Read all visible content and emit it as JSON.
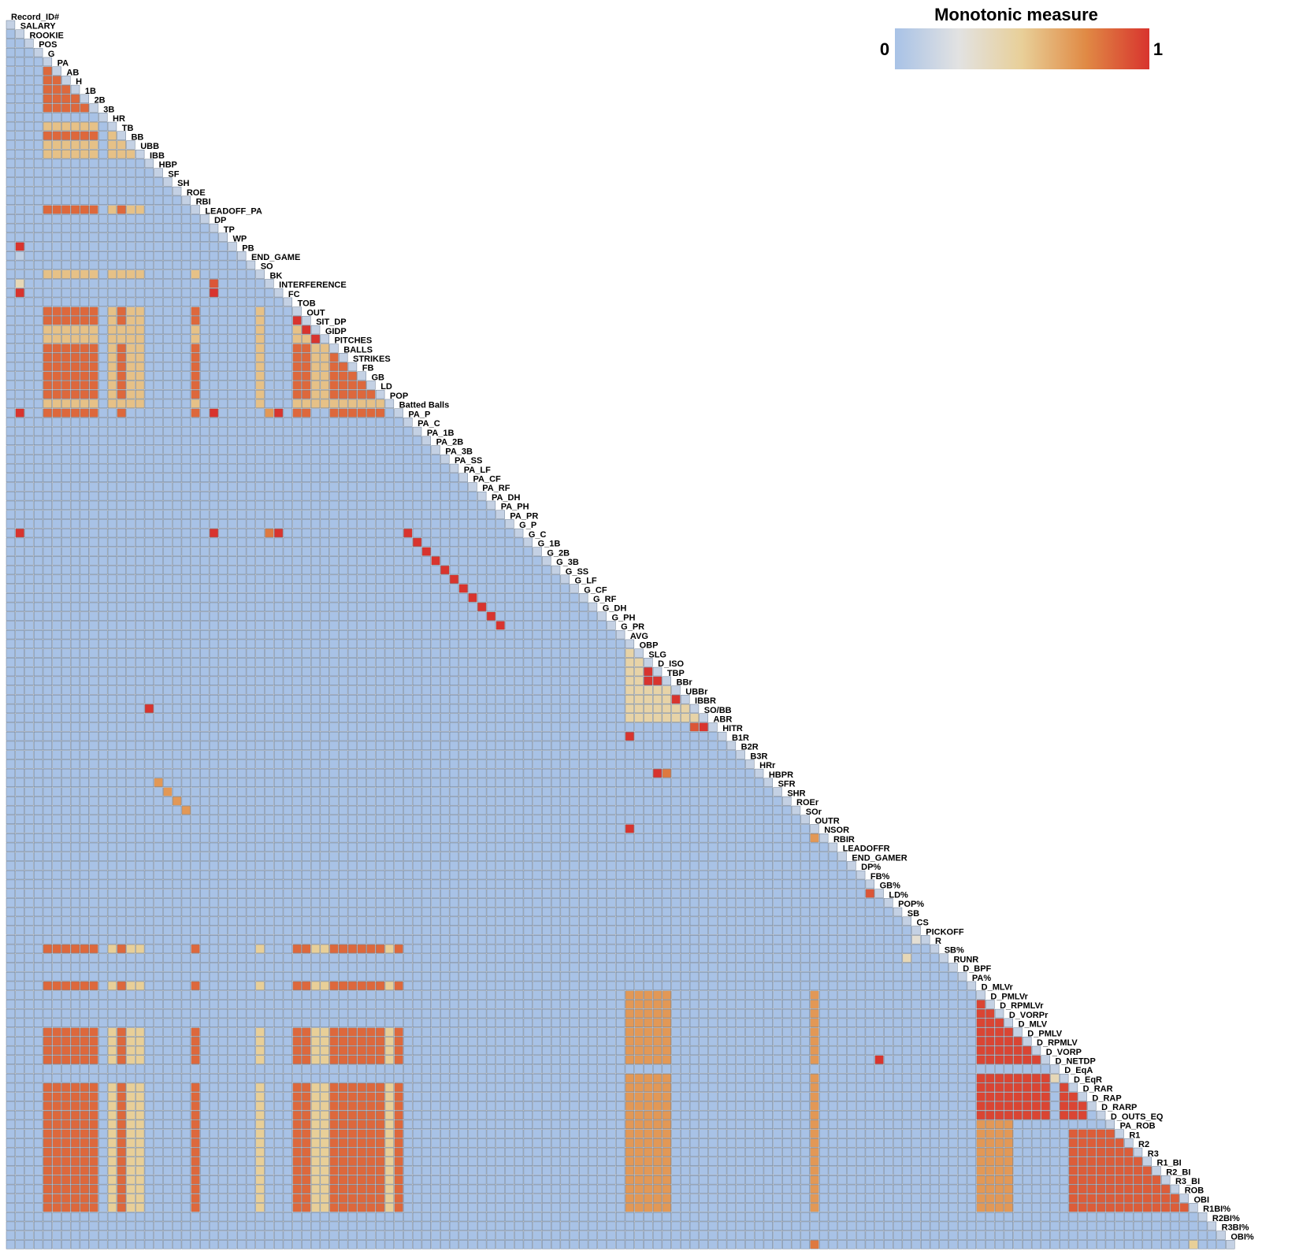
{
  "chart_data": {
    "type": "heatmap",
    "title": "",
    "legend": {
      "title": "Monotonic measure",
      "min_label": "0",
      "max_label": "1",
      "placement": "top-right",
      "colors": [
        "#a8c2e6",
        "#e2e2e2",
        "#e8cf98",
        "#e08a45",
        "#d8342e"
      ]
    },
    "layout": "lower-triangle",
    "cell_content": "miniature scatterplot of each variable pair",
    "variables": [
      "Record_ID#",
      "SALARY",
      "ROOKIE",
      "POS",
      "G",
      "PA",
      "AB",
      "H",
      "1B",
      "2B",
      "3B",
      "HR",
      "TB",
      "BB",
      "UBB",
      "IBB",
      "HBP",
      "SF",
      "SH",
      "ROE",
      "RBI",
      "LEADOFF_PA",
      "DP",
      "TP",
      "WP",
      "PB",
      "END_GAME",
      "SO",
      "BK",
      "INTERFERENCE",
      "FC",
      "TOB",
      "OUT",
      "SIT_DP",
      "GIDP",
      "PITCHES",
      "BALLS",
      "STRIKES",
      "FB",
      "GB",
      "LD",
      "POP",
      "Batted Balls",
      "PA_P",
      "PA_C",
      "PA_1B",
      "PA_2B",
      "PA_3B",
      "PA_SS",
      "PA_LF",
      "PA_CF",
      "PA_RF",
      "PA_DH",
      "PA_PH",
      "PA_PR",
      "G_P",
      "G_C",
      "G_1B",
      "G_2B",
      "G_3B",
      "G_SS",
      "G_LF",
      "G_CF",
      "G_RF",
      "G_DH",
      "G_PH",
      "G_PR",
      "AVG",
      "OBP",
      "SLG",
      "D_ISO",
      "TBP",
      "BBr",
      "UBBr",
      "IBBR",
      "SO/BB",
      "ABR",
      "HITR",
      "B1R",
      "B2R",
      "B3R",
      "HRr",
      "HBPR",
      "SFR",
      "SHR",
      "ROEr",
      "SOr",
      "OUTR",
      "NSOR",
      "RBIR",
      "LEADOFFR",
      "END_GAMER",
      "DP%",
      "FB%",
      "GB%",
      "LD%",
      "POP%",
      "SB",
      "CS",
      "PICKOFF",
      "R",
      "SB%",
      "RUNR",
      "D_BPF",
      "PA%",
      "D_MLVr",
      "D_PMLVr",
      "D_RPMLVr",
      "D_VORPr",
      "D_MLV",
      "D_PMLV",
      "D_RPMLV",
      "D_VORP",
      "D_NETDP",
      "D_EqA",
      "D_EqR",
      "D_RAR",
      "D_RAP",
      "D_RARP",
      "D_OUTS_EQ",
      "PA_ROB",
      "R1",
      "R2",
      "R3",
      "R1_BI",
      "R2_BI",
      "R3_BI",
      "ROB",
      "OBI",
      "R1BI%",
      "R2BI%",
      "R3BI%",
      "OBI%"
    ],
    "value_blocks": [
      {
        "rows": [
          "PA",
          "AB",
          "H",
          "1B",
          "2B",
          "TB",
          "RBI",
          "TOB",
          "OUT",
          "PITCHES",
          "BALLS",
          "STRIKES",
          "FB",
          "GB",
          "LD",
          "Batted Balls"
        ],
        "cols": [
          "G",
          "PA",
          "AB",
          "H",
          "1B",
          "2B",
          "TB",
          "RBI",
          "TOB",
          "OUT",
          "PITCHES",
          "BALLS",
          "STRIKES",
          "FB",
          "GB",
          "LD"
        ],
        "value": 0.85
      },
      {
        "rows": [
          "HR",
          "BB",
          "UBB",
          "SO",
          "SIT_DP",
          "GIDP",
          "POP"
        ],
        "cols": [
          "G",
          "PA",
          "AB",
          "H",
          "1B",
          "2B",
          "HR",
          "TB",
          "BB",
          "UBB",
          "RBI",
          "SO",
          "TOB",
          "OUT",
          "PITCHES",
          "BALLS",
          "STRIKES",
          "FB",
          "GB",
          "LD",
          "POP"
        ],
        "value": 0.55
      },
      {
        "rows": [
          "R",
          "PA%",
          "D_MLV",
          "D_PMLV",
          "D_RPMLV",
          "D_VORP",
          "D_EqR",
          "D_RAR",
          "D_RAP",
          "D_RARP",
          "D_OUTS_EQ",
          "PA_ROB",
          "R1",
          "R2",
          "R3",
          "R1_BI",
          "R2_BI",
          "R3_BI",
          "ROB",
          "OBI"
        ],
        "cols": [
          "G",
          "PA",
          "AB",
          "H",
          "1B",
          "2B",
          "TB",
          "RBI",
          "TOB",
          "OUT",
          "PITCHES",
          "BALLS",
          "STRIKES",
          "FB",
          "GB",
          "LD",
          "Batted Balls"
        ],
        "value": 0.85
      },
      {
        "rows": [
          "R",
          "PA%",
          "D_MLV",
          "D_PMLV",
          "D_RPMLV",
          "D_VORP",
          "D_EqR",
          "D_RAR",
          "D_RAP",
          "D_RARP",
          "D_OUTS_EQ",
          "PA_ROB",
          "R1",
          "R2",
          "R3",
          "R1_BI",
          "R2_BI",
          "R3_BI",
          "ROB",
          "OBI"
        ],
        "cols": [
          "HR",
          "BB",
          "UBB",
          "SO",
          "SIT_DP",
          "GIDP",
          "POP"
        ],
        "value": 0.5
      },
      {
        "rows": [
          "D_MLVr",
          "D_PMLVr",
          "D_RPMLVr",
          "D_VORPr",
          "D_MLV",
          "D_PMLV",
          "D_RPMLV",
          "D_VORP",
          "D_EqA",
          "D_EqR",
          "D_RAR",
          "D_RAP",
          "D_RARP",
          "D_OUTS_EQ",
          "PA_ROB",
          "R1",
          "R2",
          "R3",
          "R1_BI",
          "R2_BI",
          "R3_BI",
          "ROB",
          "OBI"
        ],
        "cols": [
          "AVG",
          "OBP",
          "SLG",
          "D_ISO",
          "TBP",
          "OUTR",
          "D_MLVr",
          "D_PMLVr",
          "D_RPMLVr",
          "D_VORPr"
        ],
        "value": 0.7
      },
      {
        "rows": [
          "D_PMLVr",
          "D_RPMLVr",
          "D_VORPr",
          "D_MLV",
          "D_PMLV",
          "D_RPMLV",
          "D_VORP",
          "D_EqA",
          "D_EqR",
          "D_RAR",
          "D_RAP",
          "D_RARP"
        ],
        "cols": [
          "D_MLVr",
          "D_PMLVr",
          "D_RPMLVr",
          "D_VORPr",
          "D_MLV",
          "D_PMLV",
          "D_RPMLV",
          "D_VORP",
          "D_EqA",
          "D_EqR",
          "D_RAR"
        ],
        "value": 0.95
      },
      {
        "rows": [
          "PA_ROB",
          "R1",
          "R2",
          "R3",
          "R1_BI",
          "R2_BI",
          "R3_BI",
          "ROB",
          "OBI"
        ],
        "cols": [
          "D_EqR",
          "D_RAR",
          "D_RAP",
          "D_RARP",
          "D_OUTS_EQ",
          "PA_ROB",
          "R1",
          "R2",
          "R3",
          "R1_BI",
          "R2_BI",
          "R3_BI",
          "ROB"
        ],
        "value": 0.88
      },
      {
        "rows": [
          "OBP",
          "SLG",
          "D_ISO",
          "TBP",
          "BBr",
          "UBBr",
          "IBBR",
          "SO/BB"
        ],
        "cols": [
          "AVG",
          "OBP",
          "SLG",
          "D_ISO",
          "TBP",
          "BBr",
          "UBBr",
          "IBBR"
        ],
        "value": 0.45
      }
    ],
    "value_cells": [
      [
        "WP",
        "SALARY",
        1.0
      ],
      [
        "PB",
        "SALARY",
        0.1
      ],
      [
        "BK",
        "SALARY",
        0.4
      ],
      [
        "INTERFERENCE",
        "SALARY",
        1.0
      ],
      [
        "Batted Balls",
        "SALARY",
        1.0
      ],
      [
        "G_P",
        "SALARY",
        1.0
      ],
      [
        "INTERFERENCE",
        "DP",
        1.0
      ],
      [
        "BK",
        "DP",
        0.9
      ],
      [
        "Batted Balls",
        "DP",
        1.0
      ],
      [
        "G_P",
        "DP",
        1.0
      ],
      [
        "Batted Balls",
        "BK",
        0.7
      ],
      [
        "G_P",
        "BK",
        0.8
      ],
      [
        "Batted Balls",
        "INTERFERENCE",
        1.0
      ],
      [
        "G_P",
        "INTERFERENCE",
        1.0
      ],
      [
        "OUT",
        "TOB",
        1.0
      ],
      [
        "SIT_DP",
        "OUT",
        1.0
      ],
      [
        "GIDP",
        "SIT_DP",
        1.0
      ],
      [
        "G_P",
        "PA_P",
        1.0
      ],
      [
        "G_C",
        "PA_C",
        1.0
      ],
      [
        "G_1B",
        "PA_1B",
        1.0
      ],
      [
        "G_2B",
        "PA_2B",
        1.0
      ],
      [
        "G_3B",
        "PA_3B",
        1.0
      ],
      [
        "G_SS",
        "PA_SS",
        1.0
      ],
      [
        "G_LF",
        "PA_LF",
        1.0
      ],
      [
        "G_CF",
        "PA_CF",
        1.0
      ],
      [
        "G_RF",
        "PA_RF",
        1.0
      ],
      [
        "G_DH",
        "PA_DH",
        1.0
      ],
      [
        "G_PH",
        "PA_PH",
        1.0
      ],
      [
        "D_ISO",
        "SLG",
        1.0
      ],
      [
        "TBP",
        "SLG",
        1.0
      ],
      [
        "TBP",
        "D_ISO",
        1.0
      ],
      [
        "UBBr",
        "BBr",
        1.0
      ],
      [
        "ABR",
        "SO/BB",
        1.0
      ],
      [
        "HITR",
        "AVG",
        1.0
      ],
      [
        "ABR",
        "IBBR",
        0.9
      ],
      [
        "HRr",
        "D_ISO",
        1.0
      ],
      [
        "HRr",
        "TBP",
        0.8
      ],
      [
        "OUTR",
        "AVG",
        1.0
      ],
      [
        "NSOR",
        "OUTR",
        0.7
      ],
      [
        "IBBR",
        "IBB",
        1.0
      ],
      [
        "HBPR",
        "HBP",
        0.7
      ],
      [
        "SFR",
        "SF",
        0.7
      ],
      [
        "SHR",
        "SH",
        0.7
      ],
      [
        "ROEr",
        "ROE",
        0.7
      ],
      [
        "GB%",
        "FB%",
        0.9
      ],
      [
        "PICKOFF",
        "CS",
        0.3
      ],
      [
        "SB%",
        "SB",
        0.4
      ],
      [
        "D_EqA",
        "D_NETDP",
        0.4
      ],
      [
        "OBI%",
        "OUTR",
        0.8
      ],
      [
        "OBI%",
        "OBI",
        0.5
      ],
      [
        "D_VORP",
        "GB%",
        1.0
      ]
    ]
  }
}
